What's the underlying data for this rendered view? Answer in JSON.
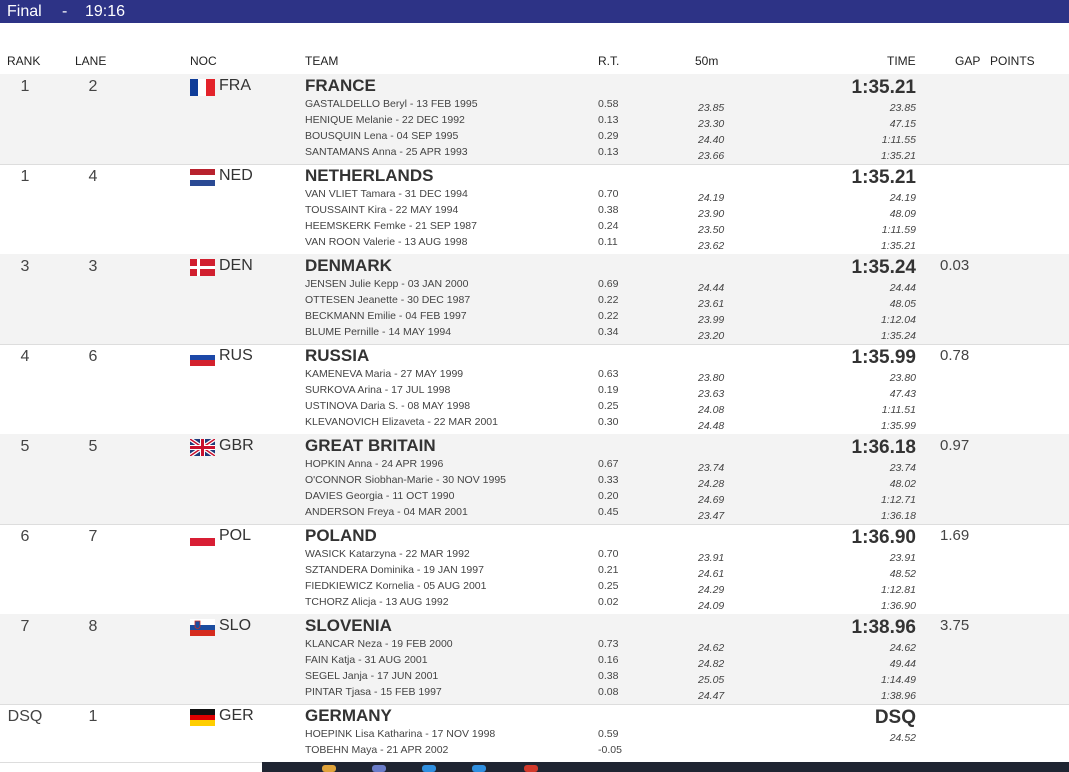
{
  "header": {
    "phase": "Final",
    "separator": "-",
    "time": "19:16"
  },
  "columns": {
    "rank": "RANK",
    "lane": "LANE",
    "noc": "NOC",
    "team": "TEAM",
    "rt": "R.T.",
    "split": "50m",
    "time": "TIME",
    "gap": "GAP",
    "points": "POINTS"
  },
  "rows": [
    {
      "rank": "1",
      "lane": "2",
      "noc": "FRA",
      "team": "FRANCE",
      "time": "1:35.21",
      "gap": "",
      "athletes": [
        {
          "name": "GASTALDELLO Beryl - 13 FEB 1995",
          "rt": "0.58",
          "split": "23.85",
          "cum": "23.85"
        },
        {
          "name": "HENIQUE Melanie - 22 DEC 1992",
          "rt": "0.13",
          "split": "23.30",
          "cum": "47.15"
        },
        {
          "name": "BOUSQUIN Lena - 04 SEP 1995",
          "rt": "0.29",
          "split": "24.40",
          "cum": "1:11.55"
        },
        {
          "name": "SANTAMANS Anna - 25 APR 1993",
          "rt": "0.13",
          "split": "23.66",
          "cum": "1:35.21"
        }
      ]
    },
    {
      "rank": "1",
      "lane": "4",
      "noc": "NED",
      "team": "NETHERLANDS",
      "time": "1:35.21",
      "gap": "",
      "athletes": [
        {
          "name": "VAN VLIET Tamara - 31 DEC 1994",
          "rt": "0.70",
          "split": "24.19",
          "cum": "24.19"
        },
        {
          "name": "TOUSSAINT Kira - 22 MAY 1994",
          "rt": "0.38",
          "split": "23.90",
          "cum": "48.09"
        },
        {
          "name": "HEEMSKERK Femke - 21 SEP 1987",
          "rt": "0.24",
          "split": "23.50",
          "cum": "1:11.59"
        },
        {
          "name": "VAN ROON Valerie - 13 AUG 1998",
          "rt": "0.11",
          "split": "23.62",
          "cum": "1:35.21"
        }
      ]
    },
    {
      "rank": "3",
      "lane": "3",
      "noc": "DEN",
      "team": "DENMARK",
      "time": "1:35.24",
      "gap": "0.03",
      "athletes": [
        {
          "name": "JENSEN Julie Kepp - 03 JAN 2000",
          "rt": "0.69",
          "split": "24.44",
          "cum": "24.44"
        },
        {
          "name": "OTTESEN Jeanette - 30 DEC 1987",
          "rt": "0.22",
          "split": "23.61",
          "cum": "48.05"
        },
        {
          "name": "BECKMANN Emilie - 04 FEB 1997",
          "rt": "0.22",
          "split": "23.99",
          "cum": "1:12.04"
        },
        {
          "name": "BLUME Pernille - 14 MAY 1994",
          "rt": "0.34",
          "split": "23.20",
          "cum": "1:35.24"
        }
      ]
    },
    {
      "rank": "4",
      "lane": "6",
      "noc": "RUS",
      "team": "RUSSIA",
      "time": "1:35.99",
      "gap": "0.78",
      "athletes": [
        {
          "name": "KAMENEVA Maria - 27 MAY 1999",
          "rt": "0.63",
          "split": "23.80",
          "cum": "23.80"
        },
        {
          "name": "SURKOVA Arina - 17 JUL 1998",
          "rt": "0.19",
          "split": "23.63",
          "cum": "47.43"
        },
        {
          "name": "USTINOVA Daria S. - 08 MAY 1998",
          "rt": "0.25",
          "split": "24.08",
          "cum": "1:11.51"
        },
        {
          "name": "KLEVANOVICH Elizaveta - 22 MAR 2001",
          "rt": "0.30",
          "split": "24.48",
          "cum": "1:35.99"
        }
      ]
    },
    {
      "rank": "5",
      "lane": "5",
      "noc": "GBR",
      "team": "GREAT BRITAIN",
      "time": "1:36.18",
      "gap": "0.97",
      "athletes": [
        {
          "name": "HOPKIN Anna - 24 APR 1996",
          "rt": "0.67",
          "split": "23.74",
          "cum": "23.74"
        },
        {
          "name": "O'CONNOR Siobhan-Marie - 30 NOV 1995",
          "rt": "0.33",
          "split": "24.28",
          "cum": "48.02"
        },
        {
          "name": "DAVIES Georgia - 11 OCT 1990",
          "rt": "0.20",
          "split": "24.69",
          "cum": "1:12.71"
        },
        {
          "name": "ANDERSON Freya - 04 MAR 2001",
          "rt": "0.45",
          "split": "23.47",
          "cum": "1:36.18"
        }
      ]
    },
    {
      "rank": "6",
      "lane": "7",
      "noc": "POL",
      "team": "POLAND",
      "time": "1:36.90",
      "gap": "1.69",
      "athletes": [
        {
          "name": "WASICK Katarzyna - 22 MAR 1992",
          "rt": "0.70",
          "split": "23.91",
          "cum": "23.91"
        },
        {
          "name": "SZTANDERA Dominika - 19 JAN 1997",
          "rt": "0.21",
          "split": "24.61",
          "cum": "48.52"
        },
        {
          "name": "FIEDKIEWICZ Kornelia - 05 AUG 2001",
          "rt": "0.25",
          "split": "24.29",
          "cum": "1:12.81"
        },
        {
          "name": "TCHORZ Alicja - 13 AUG 1992",
          "rt": "0.02",
          "split": "24.09",
          "cum": "1:36.90"
        }
      ]
    },
    {
      "rank": "7",
      "lane": "8",
      "noc": "SLO",
      "team": "SLOVENIA",
      "time": "1:38.96",
      "gap": "3.75",
      "athletes": [
        {
          "name": "KLANCAR Neza - 19 FEB 2000",
          "rt": "0.73",
          "split": "24.62",
          "cum": "24.62"
        },
        {
          "name": "FAIN Katja - 31 AUG 2001",
          "rt": "0.16",
          "split": "24.82",
          "cum": "49.44"
        },
        {
          "name": "SEGEL Janja - 17 JUN 2001",
          "rt": "0.38",
          "split": "25.05",
          "cum": "1:14.49"
        },
        {
          "name": "PINTAR Tjasa - 15 FEB 1997",
          "rt": "0.08",
          "split": "24.47",
          "cum": "1:38.96"
        }
      ]
    },
    {
      "rank": "DSQ",
      "lane": "1",
      "noc": "GER",
      "team": "GERMANY",
      "time": "DSQ",
      "gap": "",
      "athletes": [
        {
          "name": "HOEPINK Lisa Katharina - 17 NOV 1998",
          "rt": "0.59",
          "split": "",
          "cum": "24.52"
        },
        {
          "name": "TOBEHN Maya - 21 APR 2002",
          "rt": "-0.05",
          "split": "",
          "cum": ""
        }
      ]
    }
  ]
}
